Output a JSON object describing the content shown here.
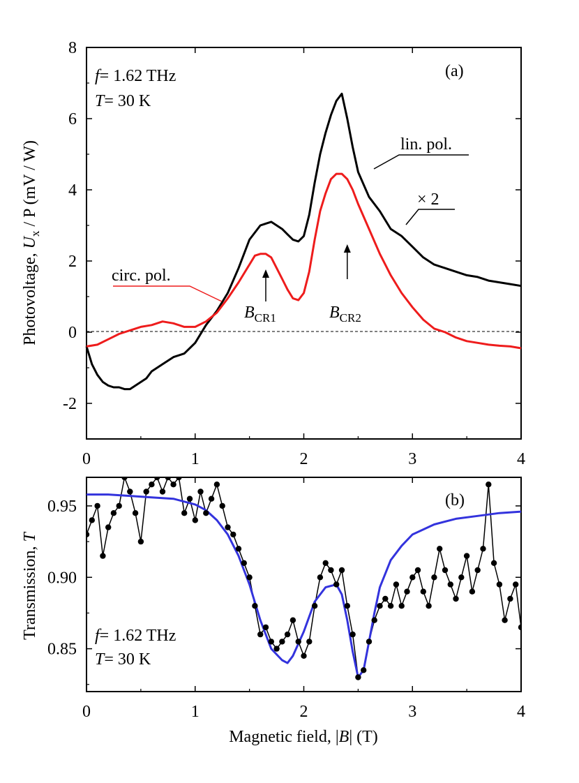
{
  "chart_data": [
    {
      "type": "line",
      "panel_label": "(a)",
      "annotation_f": "= 1.62 THz",
      "annotation_T": "= 30 K",
      "ylabel_prefix": "Photovoltage, ",
      "ylabel_sym_main": "U",
      "ylabel_sym_sub": "x",
      "ylabel_suffix": " / P (mV / W)",
      "xlim": [
        0,
        4
      ],
      "ylim": [
        -3,
        8
      ],
      "xticks": [
        "0",
        "1",
        "2",
        "3",
        "4"
      ],
      "yticks": [
        "-2",
        "0",
        "2",
        "4",
        "6",
        "8"
      ],
      "zero_line": "dashed",
      "markers": [
        {
          "label_main": "B",
          "label_sub": "CR1",
          "x": 1.65
        },
        {
          "label_main": "B",
          "label_sub": "CR2",
          "x": 2.4
        }
      ],
      "series": [
        {
          "name": "lin. pol.",
          "note": "× 2",
          "color": "#000000",
          "x": [
            0.0,
            0.05,
            0.1,
            0.15,
            0.2,
            0.25,
            0.3,
            0.35,
            0.4,
            0.45,
            0.5,
            0.55,
            0.6,
            0.7,
            0.8,
            0.9,
            1.0,
            1.1,
            1.2,
            1.3,
            1.4,
            1.5,
            1.6,
            1.7,
            1.75,
            1.8,
            1.85,
            1.9,
            1.95,
            2.0,
            2.05,
            2.1,
            2.15,
            2.2,
            2.25,
            2.3,
            2.35,
            2.4,
            2.45,
            2.5,
            2.6,
            2.7,
            2.8,
            2.9,
            3.0,
            3.1,
            3.2,
            3.3,
            3.4,
            3.5,
            3.6,
            3.7,
            3.8,
            3.9,
            4.0
          ],
          "y": [
            -0.4,
            -0.9,
            -1.2,
            -1.4,
            -1.5,
            -1.55,
            -1.55,
            -1.6,
            -1.6,
            -1.5,
            -1.4,
            -1.3,
            -1.1,
            -0.9,
            -0.7,
            -0.6,
            -0.3,
            0.2,
            0.6,
            1.1,
            1.8,
            2.6,
            3.0,
            3.1,
            3.0,
            2.9,
            2.75,
            2.6,
            2.55,
            2.7,
            3.3,
            4.2,
            5.0,
            5.6,
            6.1,
            6.5,
            6.7,
            6.0,
            5.2,
            4.5,
            3.8,
            3.4,
            2.9,
            2.7,
            2.4,
            2.1,
            1.9,
            1.8,
            1.7,
            1.6,
            1.55,
            1.45,
            1.4,
            1.35,
            1.3
          ]
        },
        {
          "name": "circ. pol.",
          "color": "#ee1c1c",
          "x": [
            0.0,
            0.1,
            0.2,
            0.3,
            0.4,
            0.5,
            0.6,
            0.7,
            0.8,
            0.9,
            1.0,
            1.1,
            1.2,
            1.3,
            1.4,
            1.5,
            1.55,
            1.6,
            1.65,
            1.7,
            1.75,
            1.8,
            1.85,
            1.9,
            1.95,
            2.0,
            2.05,
            2.1,
            2.15,
            2.2,
            2.25,
            2.3,
            2.35,
            2.4,
            2.45,
            2.5,
            2.6,
            2.7,
            2.8,
            2.9,
            3.0,
            3.1,
            3.2,
            3.3,
            3.4,
            3.5,
            3.6,
            3.7,
            3.8,
            3.9,
            4.0
          ],
          "y": [
            -0.4,
            -0.35,
            -0.2,
            -0.05,
            0.05,
            0.15,
            0.2,
            0.3,
            0.25,
            0.15,
            0.15,
            0.3,
            0.55,
            0.95,
            1.4,
            1.9,
            2.15,
            2.2,
            2.2,
            2.1,
            1.8,
            1.5,
            1.2,
            0.95,
            0.9,
            1.1,
            1.7,
            2.6,
            3.4,
            3.9,
            4.3,
            4.45,
            4.45,
            4.3,
            4.0,
            3.6,
            2.9,
            2.2,
            1.6,
            1.1,
            0.7,
            0.35,
            0.1,
            0.0,
            -0.15,
            -0.25,
            -0.3,
            -0.35,
            -0.38,
            -0.4,
            -0.45
          ]
        }
      ]
    },
    {
      "type": "scatter",
      "panel_label": "(b)",
      "annotation_f": "= 1.62 THz",
      "annotation_T": "= 30 K",
      "xlabel_prefix": "Magnetic field, |",
      "xlabel_sym": "B",
      "xlabel_suffix": "| (T)",
      "ylabel_prefix": "Transmission, ",
      "ylabel_sym": "T",
      "xlim": [
        0,
        4
      ],
      "ylim": [
        0.82,
        0.97
      ],
      "xticks": [
        "0",
        "1",
        "2",
        "3",
        "4"
      ],
      "yticks": [
        "0.85",
        "0.90",
        "0.95"
      ],
      "data_color": "#000000",
      "fit_color": "#3333dd",
      "points_x": [
        0.0,
        0.05,
        0.1,
        0.15,
        0.2,
        0.25,
        0.3,
        0.35,
        0.4,
        0.45,
        0.5,
        0.55,
        0.6,
        0.65,
        0.7,
        0.75,
        0.8,
        0.85,
        0.9,
        0.95,
        1.0,
        1.05,
        1.1,
        1.15,
        1.2,
        1.25,
        1.3,
        1.35,
        1.4,
        1.45,
        1.5,
        1.55,
        1.6,
        1.65,
        1.7,
        1.75,
        1.8,
        1.85,
        1.9,
        1.95,
        2.0,
        2.05,
        2.1,
        2.15,
        2.2,
        2.25,
        2.3,
        2.35,
        2.4,
        2.45,
        2.5,
        2.55,
        2.6,
        2.65,
        2.7,
        2.75,
        2.8,
        2.85,
        2.9,
        2.95,
        3.0,
        3.05,
        3.1,
        3.15,
        3.2,
        3.25,
        3.3,
        3.35,
        3.4,
        3.45,
        3.5,
        3.55,
        3.6,
        3.65,
        3.7,
        3.75,
        3.8,
        3.85,
        3.9,
        3.95,
        4.0
      ],
      "points_y": [
        0.93,
        0.94,
        0.95,
        0.915,
        0.935,
        0.945,
        0.95,
        0.97,
        0.96,
        0.945,
        0.925,
        0.96,
        0.965,
        0.97,
        0.96,
        0.97,
        0.965,
        0.97,
        0.945,
        0.955,
        0.94,
        0.96,
        0.945,
        0.955,
        0.965,
        0.95,
        0.935,
        0.93,
        0.92,
        0.91,
        0.9,
        0.88,
        0.86,
        0.865,
        0.855,
        0.85,
        0.855,
        0.86,
        0.87,
        0.855,
        0.845,
        0.855,
        0.88,
        0.9,
        0.91,
        0.905,
        0.895,
        0.905,
        0.88,
        0.86,
        0.83,
        0.835,
        0.855,
        0.87,
        0.88,
        0.885,
        0.88,
        0.895,
        0.88,
        0.89,
        0.9,
        0.905,
        0.89,
        0.88,
        0.9,
        0.92,
        0.905,
        0.895,
        0.885,
        0.9,
        0.915,
        0.89,
        0.905,
        0.92,
        0.965,
        0.91,
        0.895,
        0.87,
        0.885,
        0.895,
        0.865
      ],
      "fit_x": [
        0.0,
        0.2,
        0.4,
        0.6,
        0.8,
        1.0,
        1.1,
        1.2,
        1.3,
        1.4,
        1.5,
        1.6,
        1.7,
        1.8,
        1.85,
        1.9,
        2.0,
        2.1,
        2.2,
        2.3,
        2.35,
        2.4,
        2.45,
        2.5,
        2.55,
        2.6,
        2.65,
        2.7,
        2.8,
        2.9,
        3.0,
        3.2,
        3.4,
        3.6,
        3.8,
        4.0
      ],
      "fit_y": [
        0.958,
        0.958,
        0.957,
        0.956,
        0.955,
        0.951,
        0.947,
        0.94,
        0.93,
        0.915,
        0.895,
        0.87,
        0.85,
        0.842,
        0.84,
        0.845,
        0.862,
        0.883,
        0.893,
        0.895,
        0.888,
        0.87,
        0.848,
        0.83,
        0.835,
        0.855,
        0.875,
        0.893,
        0.912,
        0.922,
        0.93,
        0.937,
        0.941,
        0.943,
        0.945,
        0.946
      ]
    }
  ]
}
